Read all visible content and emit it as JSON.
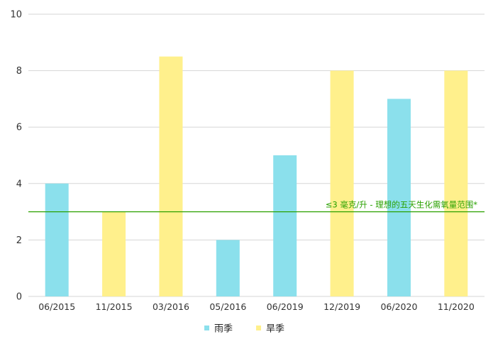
{
  "chart_data": {
    "type": "bar",
    "categories": [
      "06/2015",
      "11/2015",
      "03/2016",
      "05/2016",
      "06/2019",
      "12/2019",
      "06/2020",
      "11/2020"
    ],
    "values": [
      4,
      3,
      8.5,
      2,
      5,
      8,
      7,
      8
    ],
    "season": [
      "雨季",
      "旱季",
      "旱季",
      "雨季",
      "雨季",
      "旱季",
      "雨季",
      "旱季"
    ],
    "series": [
      {
        "name": "雨季",
        "color": "#8be0ec"
      },
      {
        "name": "旱季",
        "color": "#fff08c"
      }
    ],
    "ylim": [
      0,
      10
    ],
    "yticks": [
      0,
      2,
      4,
      6,
      8,
      10
    ],
    "grid": true,
    "legend": "bottom-center",
    "reference_line": {
      "value": 3,
      "label": "≤3 毫克/升 - 理想的五天生化需氧量范围*",
      "color": "#2aa100"
    }
  }
}
